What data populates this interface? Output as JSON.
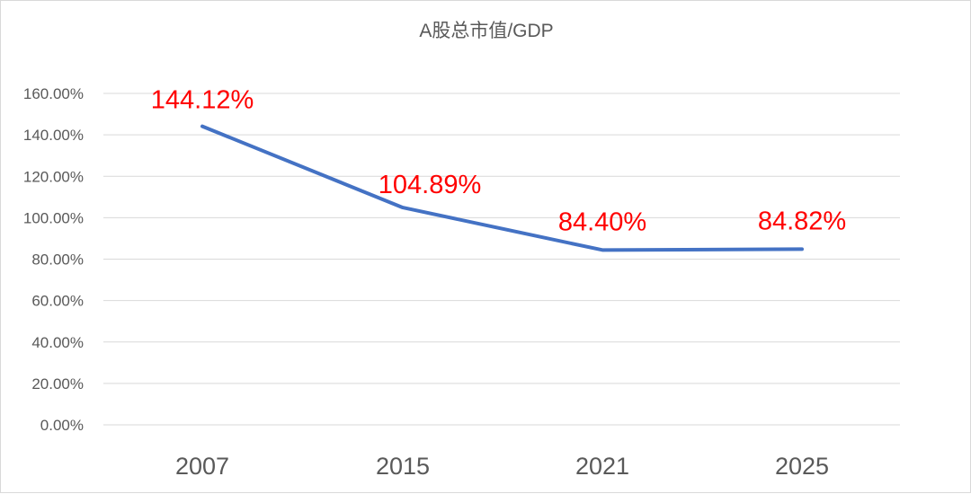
{
  "chart_data": {
    "type": "line",
    "title": "A股总市值/GDP",
    "categories": [
      "2007",
      "2015",
      "2021",
      "2025"
    ],
    "series": [
      {
        "values": [
          144.12,
          104.89,
          84.4,
          84.82
        ],
        "data_labels": [
          "144.12%",
          "104.89%",
          "84.40%",
          "84.82%"
        ]
      }
    ],
    "ylim": [
      0,
      160
    ],
    "y_ticks": [
      0,
      20,
      40,
      60,
      80,
      100,
      120,
      140,
      160
    ],
    "y_tick_labels": [
      "0.00%",
      "20.00%",
      "40.00%",
      "60.00%",
      "80.00%",
      "100.00%",
      "120.00%",
      "140.00%",
      "160.00%"
    ],
    "grid": true,
    "legend": "none",
    "colors": {
      "line": "#4472c4",
      "data_label": "#ff0000",
      "grid": "#d9d9d9",
      "text": "#595959"
    }
  }
}
